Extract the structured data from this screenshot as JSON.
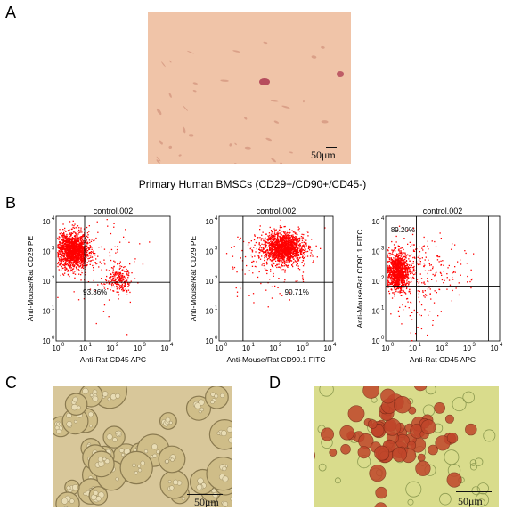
{
  "panels": {
    "a": {
      "letter": "A",
      "scale": "50μm"
    },
    "b": {
      "letter": "B"
    },
    "c": {
      "letter": "C",
      "scale": "50μm"
    },
    "d": {
      "letter": "D",
      "scale": "50μm"
    }
  },
  "caption": "Primary Human BMSCs (CD29+/CD90+/CD45-)",
  "flow_plots": [
    {
      "title": "control.002",
      "ylabel": "Anti-Mouse/Rat CD29 PE",
      "xlabel": "Anti-Rat CD45 APC",
      "percent": "93.36%"
    },
    {
      "title": "control.002",
      "ylabel": "Anti-Mouse/Rat CD29 PE",
      "xlabel": "Anti-Mouse/Rat CD90.1 FITC",
      "percent": "90.71%"
    },
    {
      "title": "control.002",
      "ylabel": "Anti-Mouse/Rat CD90.1 FITC",
      "xlabel": "Anti-Rat CD45 APC",
      "percent": "89.20%"
    }
  ],
  "axis_ticks": [
    "10",
    "10",
    "10",
    "10",
    "10"
  ],
  "axis_exponents": [
    "0",
    "1",
    "2",
    "3",
    "4"
  ],
  "colors": {
    "dots": "#ff0000",
    "panel_a_bg": "#f0c4a8",
    "panel_c_bg": "#d8c79a",
    "panel_d_bg": "#d9dc8c",
    "cell_red": "#c0462a"
  }
}
